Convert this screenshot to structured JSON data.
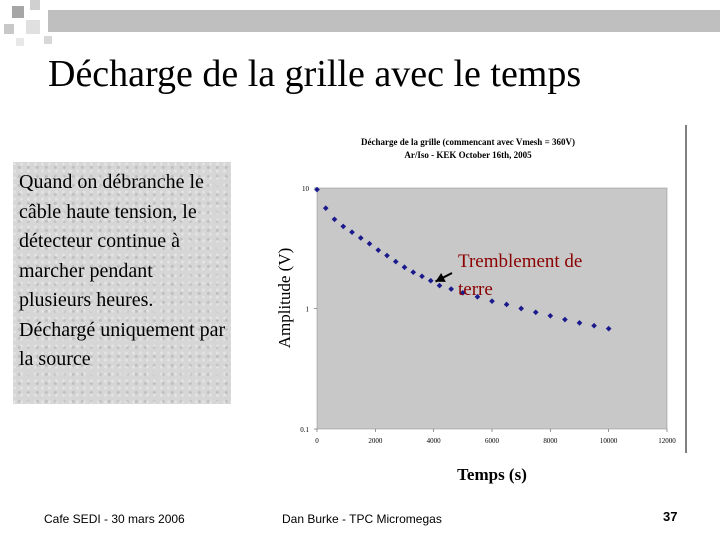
{
  "slide": {
    "title": "Décharge de la grille avec le temps",
    "body_text": "Quand on débranche le câble haute tension, le détecteur continue à marcher pendant plusieurs heures. Déchargé uniquement par la source",
    "footer_left": "Cafe SEDI - 30 mars 2006",
    "footer_center": "Dan Burke - TPC Micromegas",
    "page_number": "37"
  },
  "chart_data": {
    "type": "scatter",
    "title": "Décharge de la grille (commencant avec Vmesh = 360V)",
    "subtitle": "Ar/Iso - KEK October 16th, 2005",
    "xlabel": "Temps (s)",
    "ylabel": "Amplitude (V)",
    "xlim": [
      0,
      12000
    ],
    "ylim": [
      0.1,
      10
    ],
    "y_scale": "log",
    "x_ticks": [
      "0",
      "2000",
      "4000",
      "6000",
      "8000",
      "10000",
      "12000"
    ],
    "y_ticks": [
      "10",
      "1",
      "0.1"
    ],
    "grid": false,
    "series": [
      {
        "color": "#1a1a8c",
        "x": [
          0,
          300,
          600,
          900,
          1200,
          1500,
          1800,
          2100,
          2400,
          2700,
          3000,
          3300,
          3600,
          3900,
          4200,
          4600,
          5000,
          5500,
          6000,
          6500,
          7000,
          7500,
          8000,
          8500,
          9000,
          9500,
          10000
        ],
        "y": [
          9.7,
          6.8,
          5.5,
          4.8,
          4.3,
          3.85,
          3.45,
          3.05,
          2.75,
          2.45,
          2.2,
          2.0,
          1.85,
          1.7,
          1.55,
          1.45,
          1.35,
          1.25,
          1.15,
          1.08,
          1.0,
          0.93,
          0.87,
          0.81,
          0.76,
          0.72,
          0.68
        ]
      }
    ],
    "annotation": {
      "text_line1": "Tremblement de",
      "text_line2": "terre",
      "color": "#8b0000",
      "points_to_x": 4200,
      "points_to_y": 1.55
    }
  }
}
